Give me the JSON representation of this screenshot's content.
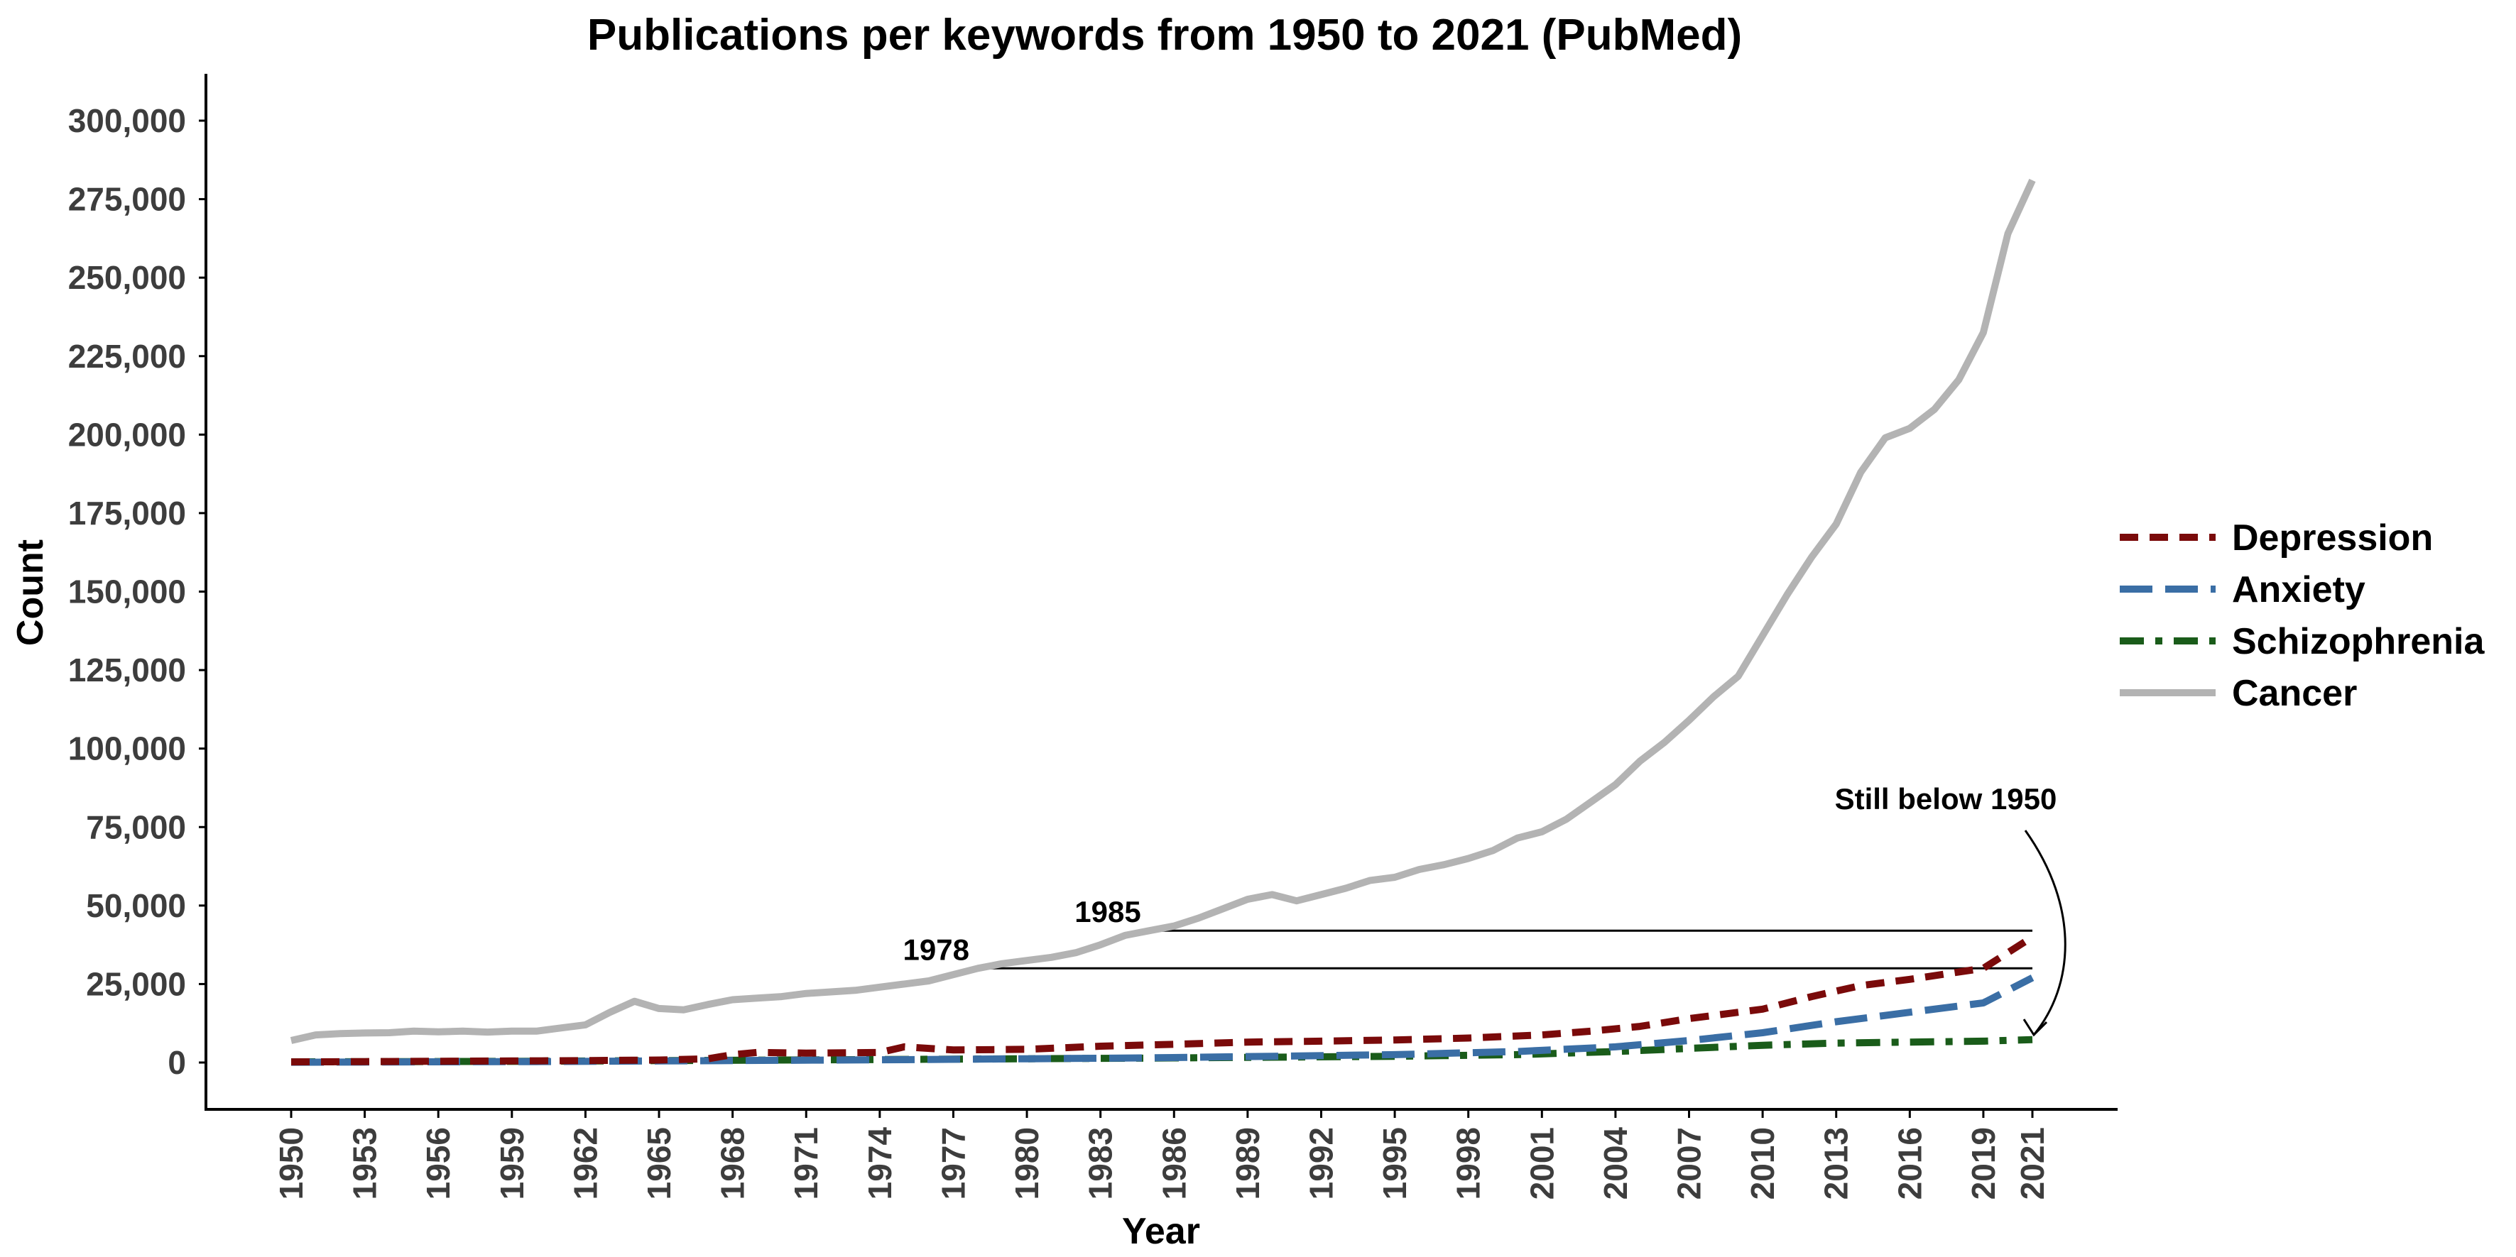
{
  "chart_data": {
    "type": "line",
    "title": "Publications per keywords from 1950 to 2021 (PubMed)",
    "xlabel": "Year",
    "ylabel": "Count",
    "xlim": [
      1950,
      2021
    ],
    "ylim": [
      0,
      300000
    ],
    "x_ticks": [
      "1950",
      "1953",
      "1956",
      "1959",
      "1962",
      "1965",
      "1968",
      "1971",
      "1974",
      "1977",
      "1980",
      "1983",
      "1986",
      "1989",
      "1992",
      "1995",
      "1998",
      "2001",
      "2004",
      "2007",
      "2010",
      "2013",
      "2016",
      "2019",
      "2021"
    ],
    "y_ticks": [
      "0",
      "25,000",
      "50,000",
      "75,000",
      "100,000",
      "125,000",
      "150,000",
      "175,000",
      "200,000",
      "225,000",
      "250,000",
      "275,000",
      "300,000"
    ],
    "grid": false,
    "legend_position": "right",
    "series": [
      {
        "name": "Depression",
        "color": "#7a0a0a",
        "dash": "dotted",
        "points": [
          [
            1950,
            200
          ],
          [
            1953,
            300
          ],
          [
            1956,
            400
          ],
          [
            1959,
            500
          ],
          [
            1962,
            600
          ],
          [
            1965,
            800
          ],
          [
            1967,
            1200
          ],
          [
            1968,
            2500
          ],
          [
            1969,
            3200
          ],
          [
            1971,
            3000
          ],
          [
            1974,
            3200
          ],
          [
            1975,
            5000
          ],
          [
            1977,
            4000
          ],
          [
            1980,
            4200
          ],
          [
            1983,
            5200
          ],
          [
            1986,
            5800
          ],
          [
            1989,
            6500
          ],
          [
            1992,
            6800
          ],
          [
            1995,
            7200
          ],
          [
            1998,
            7800
          ],
          [
            2001,
            8800
          ],
          [
            2003,
            10000
          ],
          [
            2005,
            11500
          ],
          [
            2007,
            14000
          ],
          [
            2010,
            17000
          ],
          [
            2012,
            21000
          ],
          [
            2014,
            24500
          ],
          [
            2016,
            26500
          ],
          [
            2019,
            30000
          ],
          [
            2021,
            40000
          ]
        ]
      },
      {
        "name": "Anxiety",
        "color": "#3a6ea5",
        "dash": "dashed",
        "points": [
          [
            1950,
            100
          ],
          [
            1955,
            200
          ],
          [
            1960,
            300
          ],
          [
            1965,
            500
          ],
          [
            1970,
            700
          ],
          [
            1975,
            900
          ],
          [
            1980,
            1200
          ],
          [
            1985,
            1500
          ],
          [
            1990,
            2000
          ],
          [
            1995,
            2500
          ],
          [
            2000,
            3500
          ],
          [
            2004,
            5000
          ],
          [
            2007,
            7000
          ],
          [
            2010,
            9500
          ],
          [
            2013,
            13000
          ],
          [
            2016,
            16000
          ],
          [
            2019,
            19000
          ],
          [
            2021,
            27000
          ]
        ]
      },
      {
        "name": "Schizophrenia",
        "color": "#1a5c1a",
        "dash": "dashdot",
        "points": [
          [
            1950,
            200
          ],
          [
            1955,
            300
          ],
          [
            1960,
            400
          ],
          [
            1965,
            600
          ],
          [
            1970,
            800
          ],
          [
            1975,
            1000
          ],
          [
            1980,
            1200
          ],
          [
            1985,
            1400
          ],
          [
            1990,
            1700
          ],
          [
            1995,
            2000
          ],
          [
            2000,
            2500
          ],
          [
            2004,
            3500
          ],
          [
            2007,
            4500
          ],
          [
            2010,
            5500
          ],
          [
            2013,
            6200
          ],
          [
            2016,
            6500
          ],
          [
            2019,
            6800
          ],
          [
            2021,
            7300
          ]
        ]
      },
      {
        "name": "Cancer",
        "color": "#b3b3b3",
        "dash": "solid",
        "points": [
          [
            1950,
            7000
          ],
          [
            1951,
            8800
          ],
          [
            1952,
            9200
          ],
          [
            1953,
            9400
          ],
          [
            1954,
            9500
          ],
          [
            1955,
            10000
          ],
          [
            1956,
            9800
          ],
          [
            1957,
            10000
          ],
          [
            1958,
            9700
          ],
          [
            1959,
            10000
          ],
          [
            1960,
            10000
          ],
          [
            1961,
            11000
          ],
          [
            1962,
            12000
          ],
          [
            1963,
            16000
          ],
          [
            1964,
            19500
          ],
          [
            1965,
            17200
          ],
          [
            1966,
            16800
          ],
          [
            1967,
            18500
          ],
          [
            1968,
            20000
          ],
          [
            1969,
            20500
          ],
          [
            1970,
            21000
          ],
          [
            1971,
            22000
          ],
          [
            1972,
            22500
          ],
          [
            1973,
            23000
          ],
          [
            1974,
            24000
          ],
          [
            1975,
            25000
          ],
          [
            1976,
            26000
          ],
          [
            1977,
            28000
          ],
          [
            1978,
            30000
          ],
          [
            1979,
            31500
          ],
          [
            1980,
            32500
          ],
          [
            1981,
            33500
          ],
          [
            1982,
            35000
          ],
          [
            1983,
            37500
          ],
          [
            1984,
            40500
          ],
          [
            1985,
            42000
          ],
          [
            1986,
            43500
          ],
          [
            1987,
            46000
          ],
          [
            1988,
            49000
          ],
          [
            1989,
            52000
          ],
          [
            1990,
            53500
          ],
          [
            1991,
            51500
          ],
          [
            1992,
            53500
          ],
          [
            1993,
            55500
          ],
          [
            1994,
            58000
          ],
          [
            1995,
            59000
          ],
          [
            1996,
            61500
          ],
          [
            1997,
            63000
          ],
          [
            1998,
            65000
          ],
          [
            1999,
            67500
          ],
          [
            2000,
            71500
          ],
          [
            2001,
            73500
          ],
          [
            2002,
            77500
          ],
          [
            2003,
            83000
          ],
          [
            2004,
            88500
          ],
          [
            2005,
            96000
          ],
          [
            2006,
            102000
          ],
          [
            2007,
            109000
          ],
          [
            2008,
            116500
          ],
          [
            2009,
            123000
          ],
          [
            2010,
            136000
          ],
          [
            2011,
            149000
          ],
          [
            2012,
            161000
          ],
          [
            2013,
            171500
          ],
          [
            2014,
            188000
          ],
          [
            2015,
            199000
          ],
          [
            2016,
            202000
          ],
          [
            2017,
            208000
          ],
          [
            2018,
            217500
          ],
          [
            2019,
            232500
          ],
          [
            2020,
            264000
          ],
          [
            2021,
            281000
          ]
        ]
      }
    ],
    "annotations": [
      {
        "text": "1985",
        "y": 42000,
        "from_year": 1985,
        "to_year": 2021
      },
      {
        "text": "1978",
        "y": 30000,
        "from_year": 1978,
        "to_year": 2021
      },
      {
        "text": "Still below 1950",
        "arrow_to_year": 2021,
        "arrow_to_value": 7000
      }
    ]
  }
}
